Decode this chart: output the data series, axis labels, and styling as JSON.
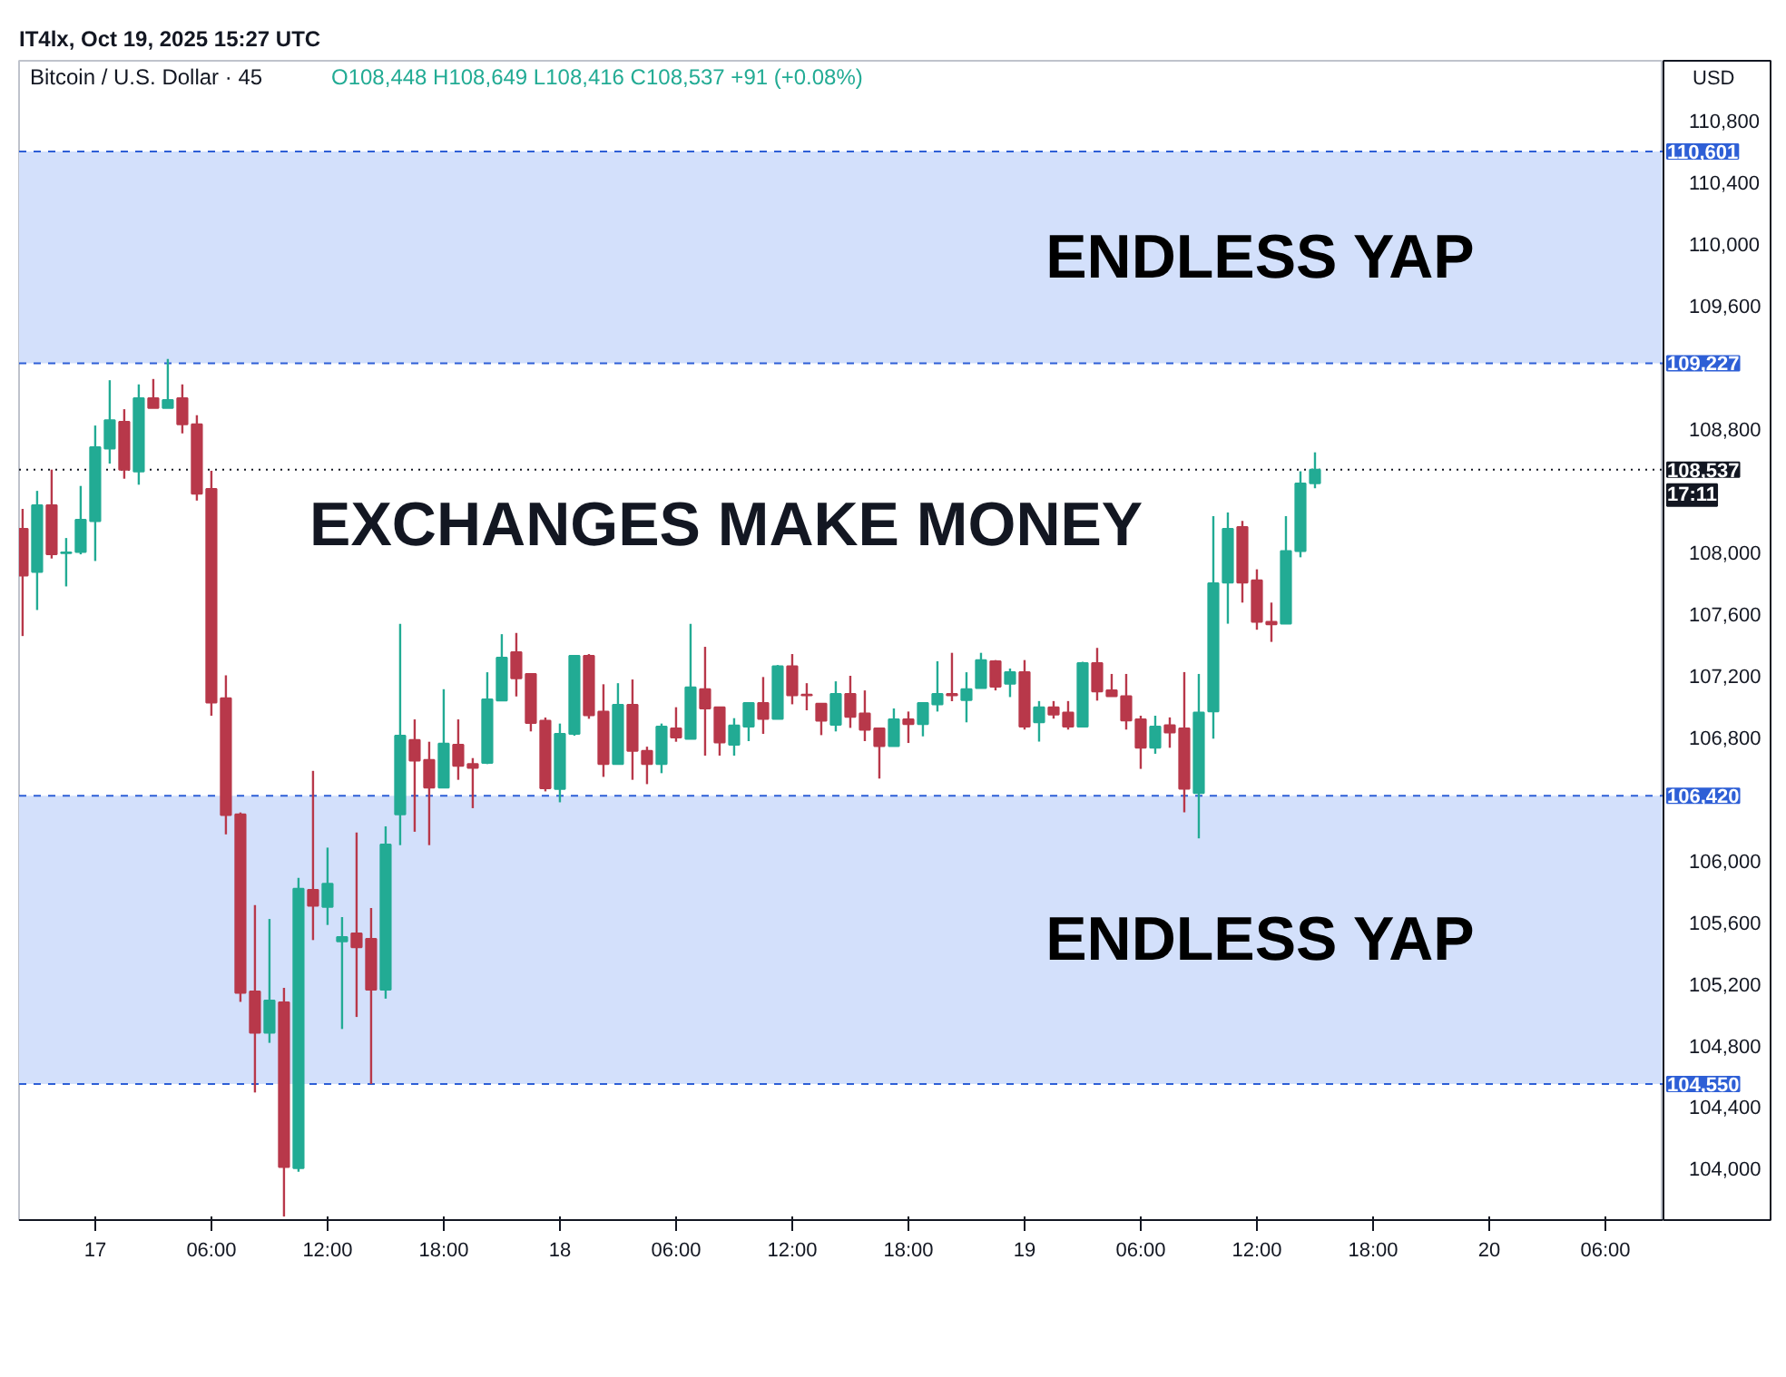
{
  "chart_data": {
    "type": "candlestick",
    "title": "Bitcoin / U.S. Dollar · 45",
    "subtitle": "O108,448 H108,649 L108,416 C108,537 +91 (+0.08%)",
    "ylabel": "USD",
    "annotations": [
      "IT4lx, Oct 19, 2025 15:27 UTC",
      "EXCHANGES MAKE MONEY",
      "17:11"
    ],
    "colors": [
      "#b8384a",
      "#22ab94",
      "#b8384a",
      "#22ab94",
      "#22ab94",
      "#22ab94",
      "#22ab94",
      "#b8384a",
      "#22ab94",
      "#b8384a",
      "#22ab94",
      "#b8384a",
      "#b8384a",
      "#b8384a",
      "#b8384a",
      "#b8384a",
      "#b8384a",
      "#22ab94",
      "#b8384a",
      "#22ab94",
      "#b8384a",
      "#22ab94",
      "#22ab94",
      "#b8384a",
      "#b8384a",
      "#22ab94",
      "#22ab94",
      "#b8384a",
      "#b8384a",
      "#22ab94",
      "#b8384a",
      "#b8384a",
      "#22ab94",
      "#22ab94",
      "#b8384a",
      "#b8384a",
      "#b8384a",
      "#22ab94",
      "#22ab94",
      "#b8384a",
      "#b8384a",
      "#22ab94",
      "#b8384a",
      "#b8384a",
      "#22ab94",
      "#b8384a",
      "#22ab94",
      "#b8384a",
      "#b8384a",
      "#22ab94",
      "#22ab94",
      "#b8384a",
      "#22ab94",
      "#b8384a",
      "#b8384a",
      "#b8384a",
      "#22ab94",
      "#b8384a",
      "#b8384a",
      "#b8384a",
      "#22ab94",
      "#b8384a",
      "#22ab94",
      "#22ab94",
      "#b8384a",
      "#22ab94",
      "#22ab94",
      "#b8384a",
      "#22ab94",
      "#b8384a",
      "#22ab94",
      "#b8384a",
      "#b8384a",
      "#22ab94",
      "#b8384a",
      "#b8384a",
      "#b8384a",
      "#b8384a",
      "#22ab94",
      "#b8384a",
      "#b8384a",
      "#22ab94",
      "#22ab94",
      "#22ab94",
      "#b8384a",
      "#b8384a",
      "#b8384a",
      "#22ab94",
      "#22ab94",
      "#22ab94"
    ],
    "x": [
      "2025-10-16T20:15",
      "2025-10-16T21:00",
      "2025-10-16T21:45",
      "2025-10-16T22:30",
      "2025-10-16T23:15",
      "2025-10-17T00:00",
      "2025-10-17T00:45",
      "2025-10-17T01:30",
      "2025-10-17T02:15",
      "2025-10-17T03:00",
      "2025-10-17T03:45",
      "2025-10-17T04:30",
      "2025-10-17T05:15",
      "2025-10-17T06:00",
      "2025-10-17T06:45",
      "2025-10-17T07:30",
      "2025-10-17T08:15",
      "2025-10-17T09:00",
      "2025-10-17T09:45",
      "2025-10-17T10:30",
      "2025-10-17T11:15",
      "2025-10-17T12:00",
      "2025-10-17T12:45",
      "2025-10-17T13:30",
      "2025-10-17T14:15",
      "2025-10-17T15:00",
      "2025-10-17T15:45",
      "2025-10-17T16:30",
      "2025-10-17T17:15",
      "2025-10-17T18:00",
      "2025-10-17T18:45",
      "2025-10-17T19:30",
      "2025-10-17T20:15",
      "2025-10-17T21:00",
      "2025-10-17T21:45",
      "2025-10-17T22:30",
      "2025-10-17T23:15",
      "2025-10-18T00:00",
      "2025-10-18T00:45",
      "2025-10-18T01:30",
      "2025-10-18T02:15",
      "2025-10-18T03:00",
      "2025-10-18T03:45",
      "2025-10-18T04:30",
      "2025-10-18T05:15",
      "2025-10-18T06:00",
      "2025-10-18T06:45",
      "2025-10-18T07:30",
      "2025-10-18T08:15",
      "2025-10-18T09:00",
      "2025-10-18T09:45",
      "2025-10-18T10:30",
      "2025-10-18T11:15",
      "2025-10-18T12:00",
      "2025-10-18T12:45",
      "2025-10-18T13:30",
      "2025-10-18T14:15",
      "2025-10-18T15:00",
      "2025-10-18T15:45",
      "2025-10-18T16:30",
      "2025-10-18T17:15",
      "2025-10-18T18:00",
      "2025-10-18T18:45",
      "2025-10-18T19:30",
      "2025-10-18T20:15",
      "2025-10-18T21:00",
      "2025-10-18T21:45",
      "2025-10-18T22:30",
      "2025-10-18T23:15",
      "2025-10-19T00:00",
      "2025-10-19T00:45",
      "2025-10-19T01:30",
      "2025-10-19T02:15",
      "2025-10-19T03:00",
      "2025-10-19T03:45",
      "2025-10-19T04:30",
      "2025-10-19T05:15",
      "2025-10-19T06:00",
      "2025-10-19T06:45",
      "2025-10-19T07:30",
      "2025-10-19T08:15",
      "2025-10-19T09:00",
      "2025-10-19T09:45",
      "2025-10-19T10:30",
      "2025-10-19T11:15",
      "2025-10-19T12:00",
      "2025-10-19T12:45",
      "2025-10-19T13:30",
      "2025-10-19T14:15",
      "2025-10-19T15:00"
    ],
    "ohlc": [
      [
        108152,
        108282,
        107457,
        107850
      ],
      [
        107873,
        108399,
        107626,
        108305
      ],
      [
        108305,
        108537,
        107960,
        107987
      ],
      [
        107995,
        108093,
        107779,
        108000
      ],
      [
        108003,
        108431,
        107987,
        108211
      ],
      [
        108203,
        108823,
        107944,
        108682
      ],
      [
        108674,
        109117,
        108576,
        108858
      ],
      [
        108847,
        108929,
        108478,
        108537
      ],
      [
        108525,
        109090,
        108439,
        109000
      ],
      [
        109000,
        109125,
        108937,
        108937
      ],
      [
        108937,
        109255,
        108937,
        108988
      ],
      [
        109000,
        109090,
        108772,
        108831
      ],
      [
        108831,
        108890,
        108336,
        108380
      ],
      [
        108411,
        108529,
        106940,
        107026
      ],
      [
        107053,
        107202,
        106170,
        106296
      ],
      [
        106300,
        106312,
        105083,
        105142
      ],
      [
        105150,
        105711,
        104495,
        104883
      ],
      [
        104883,
        105621,
        104817,
        105091
      ],
      [
        105080,
        105174,
        103690,
        104012
      ],
      [
        104004,
        105888,
        103981,
        105817
      ],
      [
        105809,
        106582,
        105484,
        105707
      ],
      [
        105699,
        106084,
        105582,
        105849
      ],
      [
        105476,
        105633,
        104907,
        105503
      ],
      [
        105527,
        106182,
        104985,
        105437
      ],
      [
        105492,
        105692,
        104550,
        105162
      ],
      [
        105162,
        106222,
        105104,
        106104
      ],
      [
        106300,
        107536,
        106100,
        106810
      ],
      [
        106783,
        106916,
        106187,
        106649
      ],
      [
        106653,
        106771,
        106100,
        106473
      ],
      [
        106473,
        107112,
        106473,
        106759
      ],
      [
        106751,
        106916,
        106524,
        106614
      ],
      [
        106626,
        106665,
        106340,
        106602
      ],
      [
        106634,
        107222,
        106626,
        107046
      ],
      [
        107038,
        107469,
        107038,
        107316
      ],
      [
        107352,
        107477,
        107065,
        107183
      ],
      [
        107210,
        107214,
        106838,
        106893
      ],
      [
        106908,
        106928,
        106449,
        106469
      ],
      [
        106465,
        106889,
        106378,
        106822
      ],
      [
        106822,
        107332,
        106810,
        107328
      ],
      [
        107328,
        107340,
        106920,
        106943
      ],
      [
        106967,
        107144,
        106543,
        106626
      ],
      [
        106626,
        107151,
        106626,
        107010
      ],
      [
        107010,
        107175,
        106524,
        106712
      ],
      [
        106712,
        106739,
        106496,
        106626
      ],
      [
        106626,
        106889,
        106567,
        106869
      ],
      [
        106857,
        106995,
        106771,
        106798
      ],
      [
        106790,
        107536,
        106790,
        107124
      ],
      [
        107112,
        107387,
        106681,
        106987
      ],
      [
        106995,
        106995,
        106681,
        106767
      ],
      [
        106751,
        106924,
        106681,
        106877
      ],
      [
        106869,
        107026,
        106775,
        107022
      ],
      [
        107022,
        107191,
        106822,
        106920
      ],
      [
        106920,
        107269,
        106920,
        107261
      ],
      [
        107261,
        107340,
        107014,
        107073
      ],
      [
        107077,
        107151,
        106975,
        107073
      ],
      [
        107018,
        107018,
        106814,
        106908
      ],
      [
        106881,
        107163,
        106838,
        107081
      ],
      [
        107081,
        107199,
        106861,
        106932
      ],
      [
        106955,
        107104,
        106775,
        106849
      ],
      [
        106857,
        106857,
        106532,
        106743
      ],
      [
        106743,
        106987,
        106743,
        106916
      ],
      [
        106916,
        106967,
        106763,
        106885
      ],
      [
        106885,
        107022,
        106806,
        107022
      ],
      [
        107014,
        107293,
        106967,
        107081
      ],
      [
        107081,
        107348,
        107034,
        107073
      ],
      [
        107042,
        107222,
        106897,
        107112
      ],
      [
        107120,
        107348,
        107120,
        107301
      ],
      [
        107293,
        107301,
        107104,
        107128
      ],
      [
        107148,
        107246,
        107061,
        107222
      ],
      [
        107223,
        107301,
        106850,
        106870
      ],
      [
        106897,
        107035,
        106772,
        106995
      ],
      [
        106995,
        107035,
        106921,
        106948
      ],
      [
        106960,
        107035,
        106850,
        106870
      ],
      [
        106870,
        107290,
        106870,
        107282
      ],
      [
        107282,
        107380,
        107038,
        107097
      ],
      [
        107105,
        107211,
        107066,
        107066
      ],
      [
        107066,
        107211,
        106850,
        106909
      ],
      [
        106917,
        106940,
        106595,
        106732
      ],
      [
        106732,
        106940,
        106693,
        106870
      ],
      [
        106878,
        106929,
        106732,
        106831
      ],
      [
        106858,
        107223,
        106313,
        106466
      ],
      [
        106438,
        107211,
        106144,
        106960
      ],
      [
        106968,
        108235,
        106791,
        107800
      ],
      [
        107804,
        108259,
        107537,
        108153
      ],
      [
        108165,
        108204,
        107674,
        107804
      ],
      [
        107819,
        107890,
        107498,
        107549
      ],
      [
        107549,
        107674,
        107419,
        107533
      ],
      [
        107537,
        108235,
        107537,
        108008
      ],
      [
        108008,
        108526,
        107968,
        108447
      ],
      [
        108448,
        108649,
        108416,
        108537
      ]
    ],
    "xlim": [
      "2025-10-16T20:04",
      "2025-10-20T09:00"
    ],
    "xticks": [
      {
        "value": "2025-10-17T00:00",
        "label": "17"
      },
      {
        "value": "2025-10-17T06:00",
        "label": "06:00"
      },
      {
        "value": "2025-10-17T12:00",
        "label": "12:00"
      },
      {
        "value": "2025-10-17T18:00",
        "label": "18:00"
      },
      {
        "value": "2025-10-18T00:00",
        "label": "18"
      },
      {
        "value": "2025-10-18T06:00",
        "label": "06:00"
      },
      {
        "value": "2025-10-18T12:00",
        "label": "12:00"
      },
      {
        "value": "2025-10-18T18:00",
        "label": "18:00"
      },
      {
        "value": "2025-10-19T00:00",
        "label": "19"
      },
      {
        "value": "2025-10-19T06:00",
        "label": "06:00"
      },
      {
        "value": "2025-10-19T12:00",
        "label": "12:00"
      },
      {
        "value": "2025-10-19T18:00",
        "label": "18:00"
      },
      {
        "value": "2025-10-20T00:00",
        "label": "20"
      },
      {
        "value": "2025-10-20T06:00",
        "label": "06:00"
      }
    ],
    "ylim": [
      103667,
      111190
    ],
    "yticks": [
      {
        "value": 104000,
        "label": "104,000"
      },
      {
        "value": 104400,
        "label": "104,400"
      },
      {
        "value": 104800,
        "label": "104,800"
      },
      {
        "value": 105200,
        "label": "105,200"
      },
      {
        "value": 105600,
        "label": "105,600"
      },
      {
        "value": 106000,
        "label": "106,000"
      },
      {
        "value": 106800,
        "label": "106,800"
      },
      {
        "value": 107200,
        "label": "107,200"
      },
      {
        "value": 107600,
        "label": "107,600"
      },
      {
        "value": 108000,
        "label": "108,000"
      },
      {
        "value": 108800,
        "label": "108,800"
      },
      {
        "value": 109600,
        "label": "109,600"
      },
      {
        "value": 110000,
        "label": "110,000"
      },
      {
        "value": 110400,
        "label": "110,400"
      },
      {
        "value": 110800,
        "label": "110,800"
      }
    ],
    "ref_lines": [
      {
        "axis": "y",
        "value": 110601,
        "label": "110,601",
        "color": "#2e5fd6",
        "line_style": "dashed"
      },
      {
        "axis": "y",
        "value": 109227,
        "label": "109,227",
        "color": "#2e5fd6",
        "line_style": "dashed"
      },
      {
        "axis": "y",
        "value": 108537,
        "label": "108,537",
        "color": "#131722",
        "line_style": "dotted"
      },
      {
        "axis": "y",
        "value": 106420,
        "label": "106,420",
        "color": "#2e5fd6",
        "line_style": "dashed"
      },
      {
        "axis": "y",
        "value": 104550,
        "label": "104,550",
        "color": "#2e5fd6",
        "line_style": "dashed"
      }
    ],
    "bands": [
      {
        "axis": "y",
        "from": 109227,
        "to": 110601,
        "label": "ENDLESS YAP",
        "color": "#d3e0fb"
      },
      {
        "axis": "y",
        "from": 104550,
        "to": 106420,
        "label": "ENDLESS YAP",
        "color": "#d3e0fb"
      }
    ],
    "grid": false
  }
}
